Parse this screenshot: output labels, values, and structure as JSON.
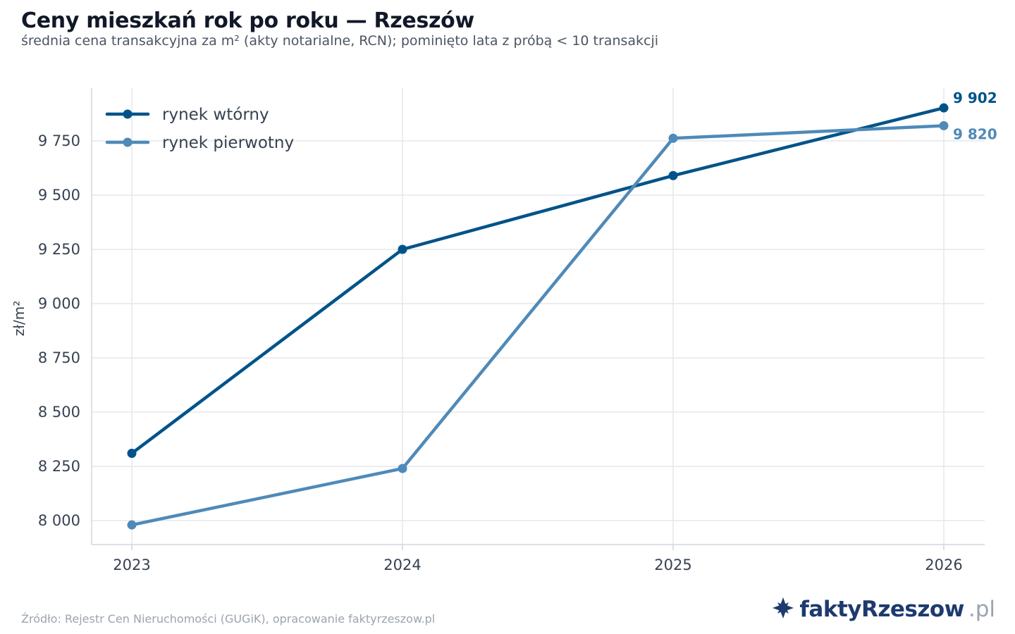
{
  "header": {
    "title": "Ceny mieszkań rok po roku — Rzeszów",
    "subtitle": "średnia cena transakcyjna za m² (akty notarialne, RCN); pominięto lata z próbą < 10 transakcji"
  },
  "footer": {
    "source": "Źródło: Rejestr Cen Nieruchomości (GUGiK), opracowanie faktyrzeszow.pl",
    "brand_name": "faktyRzeszow",
    "brand_tld": ".pl"
  },
  "colors": {
    "secondary": "#00538a",
    "primary": "#4f8ab8",
    "grid": "#e5e7eb",
    "brand": "#1e3a6e"
  },
  "chart_data": {
    "type": "line",
    "title": "Ceny mieszkań rok po roku — Rzeszów",
    "ylabel": "zł/m²",
    "xlabel": "",
    "x": [
      "2023",
      "2024",
      "2025",
      "2026"
    ],
    "ylim": [
      7890,
      9950
    ],
    "yticks": [
      8000,
      8250,
      8500,
      8750,
      9000,
      9250,
      9500,
      9750
    ],
    "ytick_labels": [
      "8 000",
      "8 250",
      "8 500",
      "8 750",
      "9 000",
      "9 250",
      "9 500",
      "9 750"
    ],
    "grid": true,
    "legend_position": "top-left",
    "series": [
      {
        "name": "rynek wtórny",
        "color": "#00538a",
        "values": [
          8310,
          9250,
          9590,
          9902
        ],
        "end_label": "9 902"
      },
      {
        "name": "rynek pierwotny",
        "color": "#4f8ab8",
        "values": [
          7980,
          8240,
          9762,
          9820
        ],
        "end_label": "9 820"
      }
    ]
  }
}
